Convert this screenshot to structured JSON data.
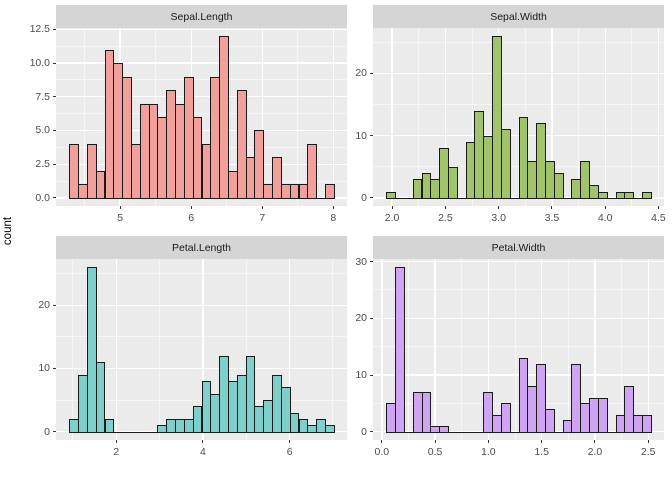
{
  "figure": {
    "ylabel": "count",
    "background": "#FFFFFF",
    "panel_bg": "#EBEBEB",
    "strip_bg": "#D5D5D5",
    "grid_color": "#FFFFFF",
    "axis_text_color": "#4D4D4D",
    "strip_text_color": "#1A1A1A",
    "bar_stroke": "#1A1A1A",
    "grid": "on",
    "legend": "none"
  },
  "chart_data": [
    {
      "type": "bar",
      "variant": "histogram",
      "title": "Sepal.Length",
      "fill": "#F1A09C",
      "bin_start": 4.2828,
      "bin_width": 0.124138,
      "counts": [
        4,
        1,
        4,
        2,
        11,
        10,
        9,
        4,
        7,
        7,
        6,
        8,
        7,
        9,
        6,
        4,
        9,
        12,
        2,
        8,
        3,
        5,
        1,
        3,
        1,
        1,
        1,
        4,
        0,
        1
      ],
      "x_range": [
        4.0966,
        8.1931
      ],
      "y_range": [
        -0.6,
        12.6
      ],
      "x_ticks": {
        "values": [
          5,
          6,
          7,
          8
        ],
        "labels": [
          "5",
          "6",
          "7",
          "8"
        ]
      },
      "x_minor": [
        4.5,
        5.5,
        6.5,
        7.5
      ],
      "y_ticks": {
        "values": [
          0,
          2.5,
          5,
          7.5,
          10,
          12.5
        ],
        "labels": [
          "0.0",
          "2.5",
          "5.0",
          "7.5",
          "10.0",
          "12.5"
        ]
      },
      "y_minor": [
        1.25,
        3.75,
        6.25,
        8.75,
        11.25
      ]
    },
    {
      "type": "bar",
      "variant": "histogram",
      "title": "Sepal.Width",
      "fill": "#A1C46B",
      "bin_start": 1.9448,
      "bin_width": 0.0827586,
      "counts": [
        1,
        0,
        0,
        3,
        4,
        3,
        8,
        5,
        0,
        9,
        14,
        10,
        26,
        11,
        0,
        13,
        6,
        12,
        6,
        4,
        0,
        3,
        6,
        2,
        1,
        0,
        1,
        1,
        0,
        1
      ],
      "x_range": [
        1.8207,
        4.5517
      ],
      "y_range": [
        -1.3,
        27.3
      ],
      "x_ticks": {
        "values": [
          2.0,
          2.5,
          3.0,
          3.5,
          4.0,
          4.5
        ],
        "labels": [
          "2.0",
          "2.5",
          "3.0",
          "3.5",
          "4.0",
          "4.5"
        ]
      },
      "x_minor": [
        2.25,
        2.75,
        3.25,
        3.75,
        4.25
      ],
      "y_ticks": {
        "values": [
          0,
          10,
          20
        ],
        "labels": [
          "0",
          "10",
          "20"
        ]
      },
      "y_minor": [
        5,
        15,
        25
      ]
    },
    {
      "type": "bar",
      "variant": "histogram",
      "title": "Petal.Length",
      "fill": "#7FD0CB",
      "bin_start": 0.91552,
      "bin_width": 0.203448,
      "counts": [
        2,
        9,
        26,
        11,
        2,
        0,
        0,
        0,
        0,
        0,
        1,
        2,
        2,
        2,
        4,
        8,
        6,
        12,
        8,
        9,
        12,
        4,
        5,
        9,
        7,
        3,
        2,
        1,
        2,
        1
      ],
      "x_range": [
        0.6103,
        7.3241
      ],
      "y_range": [
        -1.3,
        27.3
      ],
      "x_ticks": {
        "values": [
          2,
          4,
          6
        ],
        "labels": [
          "2",
          "4",
          "6"
        ]
      },
      "x_minor": [
        1,
        3,
        5,
        7
      ],
      "y_ticks": {
        "values": [
          0,
          10,
          20
        ],
        "labels": [
          "0",
          "10",
          "20"
        ]
      },
      "y_minor": [
        5,
        15,
        25
      ]
    },
    {
      "type": "bar",
      "variant": "histogram",
      "title": "Petal.Width",
      "fill": "#CFA5F3",
      "bin_start": 0.041379,
      "bin_width": 0.0827586,
      "counts": [
        5,
        29,
        0,
        7,
        7,
        1,
        1,
        0,
        0,
        0,
        0,
        7,
        3,
        5,
        0,
        13,
        8,
        12,
        4,
        0,
        2,
        12,
        5,
        6,
        6,
        0,
        3,
        8,
        3,
        3
      ],
      "x_range": [
        -0.0828,
        2.6483
      ],
      "y_range": [
        -1.45,
        30.45
      ],
      "x_ticks": {
        "values": [
          0.0,
          0.5,
          1.0,
          1.5,
          2.0,
          2.5
        ],
        "labels": [
          "0.0",
          "0.5",
          "1.0",
          "1.5",
          "2.0",
          "2.5"
        ]
      },
      "x_minor": [
        0.25,
        0.75,
        1.25,
        1.75,
        2.25
      ],
      "y_ticks": {
        "values": [
          0,
          10,
          20,
          30
        ],
        "labels": [
          "0",
          "10",
          "20",
          "30"
        ]
      },
      "y_minor": [
        5,
        15,
        25
      ]
    }
  ]
}
